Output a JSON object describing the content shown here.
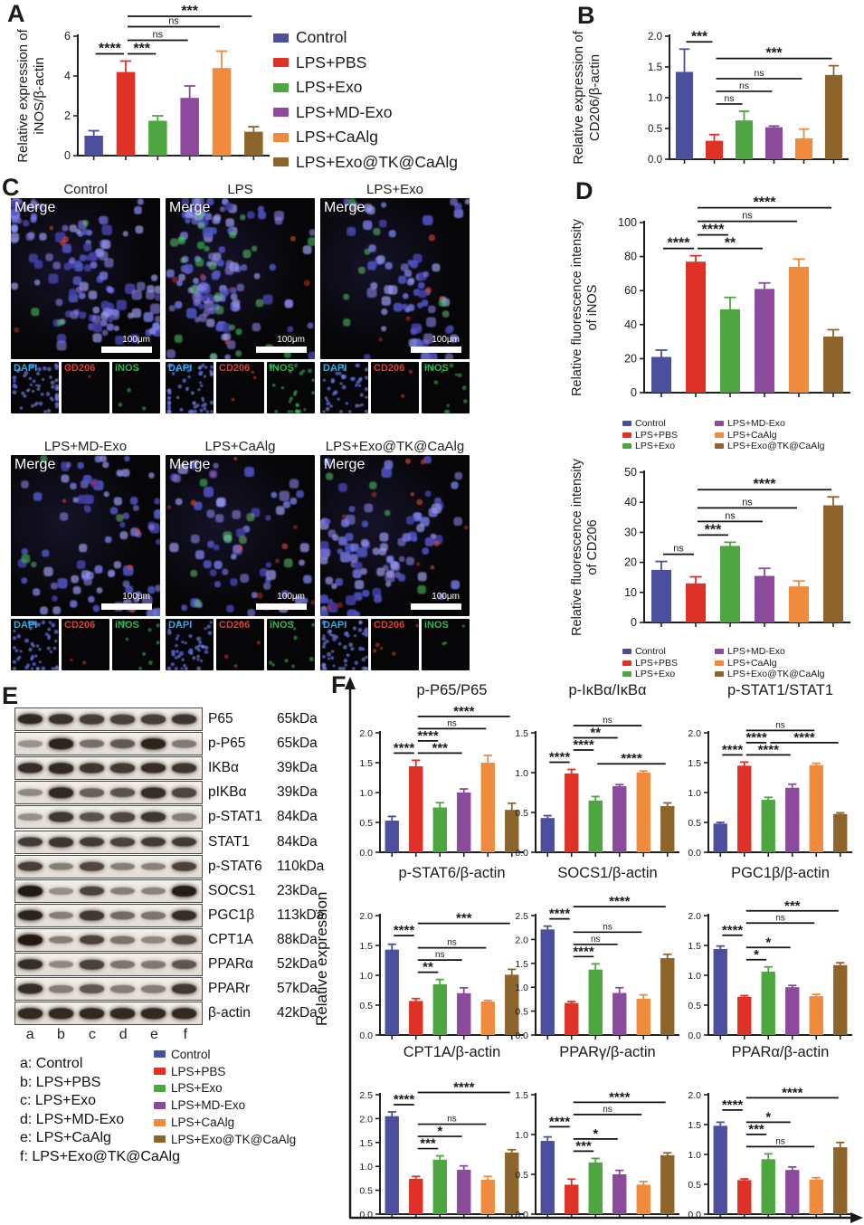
{
  "panels": {
    "a": "A",
    "b": "B",
    "c": "C",
    "d": "D",
    "e": "E",
    "f": "F"
  },
  "colors": {
    "series": [
      "#4b4f9e",
      "#e03127",
      "#4da63f",
      "#8c4a9c",
      "#f08a3d",
      "#8d652c"
    ],
    "axis": "#1f1f1f",
    "sig": "#111111",
    "dapi_label": "#29aee6",
    "cd206_label": "#e43d2d",
    "inos_label": "#2fb54d"
  },
  "legend_top": [
    "Control",
    "LPS+PBS",
    "LPS+Exo",
    "LPS+MD-Exo",
    "LPS+CaAlg",
    "LPS+Exo@TK@CaAlg"
  ],
  "panel_c": {
    "merge_label": "Merge",
    "scale_label": "100μm",
    "channels": [
      "DAPI",
      "CD206",
      "iNOS"
    ],
    "groups": [
      {
        "title": "Control",
        "merge": {
          "blue": 130,
          "green": 3,
          "red": 4
        },
        "mini": {
          "dapi": 60,
          "cd206": 2,
          "inos": 4
        }
      },
      {
        "title": "LPS",
        "merge": {
          "blue": 115,
          "green": 26,
          "red": 6
        },
        "mini": {
          "dapi": 62,
          "cd206": 3,
          "inos": 28
        }
      },
      {
        "title": "LPS+Exo",
        "merge": {
          "blue": 70,
          "green": 8,
          "red": 5
        },
        "mini": {
          "dapi": 45,
          "cd206": 2,
          "inos": 12
        }
      },
      {
        "title": "LPS+MD-Exo",
        "merge": {
          "blue": 88,
          "green": 4,
          "red": 5
        },
        "mini": {
          "dapi": 50,
          "cd206": 2,
          "inos": 9
        }
      },
      {
        "title": "LPS+CaAlg",
        "merge": {
          "blue": 62,
          "green": 8,
          "red": 10
        },
        "mini": {
          "dapi": 44,
          "cd206": 4,
          "inos": 9
        }
      },
      {
        "title": "LPS+Exo@TK@CaAlg",
        "merge": {
          "blue": 92,
          "green": 4,
          "red": 12
        },
        "mini": {
          "dapi": 55,
          "cd206": 5,
          "inos": 3
        }
      }
    ]
  },
  "panel_d": {
    "legend_cols": [
      [
        "Control",
        "LPS+PBS",
        "LPS+Exo"
      ],
      [
        "LPS+MD-Exo",
        "LPS+CaAlg",
        "LPS+Exo@TK@CaAlg"
      ]
    ]
  },
  "panel_e": {
    "lanes": [
      "a",
      "b",
      "c",
      "d",
      "e",
      "f"
    ],
    "blots": [
      {
        "name": "P65",
        "kda": "65kDa",
        "bands": [
          0.92,
          0.88,
          0.82,
          0.8,
          0.82,
          0.86
        ]
      },
      {
        "name": "p-P65",
        "kda": "65kDa",
        "bands": [
          0.4,
          0.95,
          0.58,
          0.68,
          0.95,
          0.52
        ]
      },
      {
        "name": "IKBα",
        "kda": "39kDa",
        "bands": [
          0.9,
          0.92,
          0.86,
          0.84,
          0.9,
          0.86
        ]
      },
      {
        "name": "pIKBα",
        "kda": "39kDa",
        "bands": [
          0.45,
          0.92,
          0.65,
          0.72,
          0.9,
          0.78
        ]
      },
      {
        "name": "p-STAT1",
        "kda": "84kDa",
        "bands": [
          0.42,
          0.85,
          0.72,
          0.78,
          0.86,
          0.5
        ]
      },
      {
        "name": "STAT1",
        "kda": "84kDa",
        "bands": [
          0.84,
          0.86,
          0.84,
          0.8,
          0.84,
          0.84
        ]
      },
      {
        "name": "p-STAT6",
        "kda": "110kDa",
        "bands": [
          0.82,
          0.5,
          0.78,
          0.5,
          0.48,
          0.8
        ]
      },
      {
        "name": "SOCS1",
        "kda": "23kDa",
        "bands": [
          1.0,
          0.42,
          0.8,
          0.5,
          0.48,
          0.98
        ]
      },
      {
        "name": "PGC1β",
        "kda": "113kDa",
        "bands": [
          0.95,
          0.5,
          0.85,
          0.6,
          0.55,
          0.9
        ]
      },
      {
        "name": "CPT1A",
        "kda": "88kDa",
        "bands": [
          1.0,
          0.5,
          0.8,
          0.55,
          0.45,
          0.75
        ]
      },
      {
        "name": "PPARα",
        "kda": "52kDa",
        "bands": [
          0.9,
          0.45,
          0.8,
          0.55,
          0.52,
          0.7
        ]
      },
      {
        "name": "PPARr",
        "kda": "57kDa",
        "bands": [
          0.9,
          0.5,
          0.7,
          0.5,
          0.5,
          0.85
        ]
      },
      {
        "name": "β-actin",
        "kda": "42kDa",
        "bands": [
          0.92,
          0.92,
          0.92,
          0.92,
          0.92,
          0.92
        ]
      }
    ],
    "lane_key": [
      "a: Control",
      "b: LPS+PBS",
      "c: LPS+Exo",
      "d: LPS+MD-Exo",
      "e: LPS+CaAlg",
      "f: LPS+Exo@TK@CaAlg"
    ],
    "legend": [
      "Control",
      "LPS+PBS",
      "LPS+Exo",
      "LPS+MD-Exo",
      "LPS+CaAlg",
      "LPS+Exo@TK@CaAlg"
    ]
  },
  "panel_f": {
    "ylabel": "Relative expression"
  },
  "chart_data": {
    "categories": [
      "Control",
      "LPS+PBS",
      "LPS+Exo",
      "LPS+MD-Exo",
      "LPS+CaAlg",
      "LPS+Exo@TK@CaAlg"
    ],
    "charts": [
      {
        "id": "A",
        "type": "bar",
        "title": "",
        "ylabel_lines": [
          "Relative expression of",
          "iNOS/β-actin"
        ],
        "ymax": 6,
        "yticks": [
          "0",
          "2",
          "4",
          "6"
        ],
        "values": [
          1.0,
          4.2,
          1.75,
          2.9,
          4.4,
          1.2
        ],
        "errors": [
          0.25,
          0.55,
          0.25,
          0.6,
          0.85,
          0.25
        ],
        "sig": [
          {
            "a": 0,
            "b": 1,
            "label": "****",
            "row": 0
          },
          {
            "a": 1,
            "b": 2,
            "label": "***",
            "row": 0
          },
          {
            "a": 1,
            "b": 3,
            "label": "ns",
            "row": 1
          },
          {
            "a": 1,
            "b": 4,
            "label": "ns",
            "row": 2
          },
          {
            "a": 1,
            "b": 5,
            "label": "***",
            "row": 3
          }
        ]
      },
      {
        "id": "B",
        "type": "bar",
        "title": "",
        "ylabel_lines": [
          "Relative expression of",
          "CD206/β-actin"
        ],
        "ymax": 2,
        "yticks": [
          "0.0",
          "0.5",
          "1.0",
          "1.5",
          "2.0"
        ],
        "values": [
          1.42,
          0.3,
          0.63,
          0.52,
          0.34,
          1.37
        ],
        "errors": [
          0.37,
          0.1,
          0.15,
          0.02,
          0.15,
          0.15
        ],
        "sig": [
          {
            "a": 1,
            "b": 2,
            "label": "ns",
            "row": 0
          },
          {
            "a": 1,
            "b": 3,
            "label": "ns",
            "row": 1
          },
          {
            "a": 1,
            "b": 4,
            "label": "ns",
            "row": 2
          },
          {
            "a": 1,
            "b": 5,
            "label": "***",
            "row": 3
          },
          {
            "a": 0,
            "b": 1,
            "label": "***",
            "row": 4
          }
        ]
      },
      {
        "id": "D1",
        "type": "bar",
        "title": "",
        "ylabel_lines": [
          "Relative fluorescence intensity",
          "of iNOS"
        ],
        "ymax": 100,
        "yticks": [
          "0",
          "20",
          "40",
          "60",
          "80",
          "100"
        ],
        "values": [
          21,
          77,
          49,
          61,
          74,
          33
        ],
        "errors": [
          4,
          3.5,
          7,
          3.5,
          4.5,
          4
        ],
        "sig": [
          {
            "a": 0,
            "b": 1,
            "label": "****",
            "row": 0
          },
          {
            "a": 1,
            "b": 3,
            "label": "**",
            "row": 0
          },
          {
            "a": 1,
            "b": 2,
            "label": "****",
            "row": 1
          },
          {
            "a": 1,
            "b": 4,
            "label": "ns",
            "row": 2
          },
          {
            "a": 1,
            "b": 5,
            "label": "****",
            "row": 3
          }
        ]
      },
      {
        "id": "D2",
        "type": "bar",
        "title": "",
        "ylabel_lines": [
          "Relative fluorescence intensity",
          "of CD206"
        ],
        "ymax": 50,
        "yticks": [
          "0",
          "10",
          "20",
          "30",
          "40",
          "50"
        ],
        "values": [
          17.5,
          13,
          25.5,
          15.5,
          12,
          39
        ],
        "errors": [
          2.8,
          2.2,
          1.2,
          2.5,
          1.8,
          2.8
        ],
        "sig": [
          {
            "a": 0,
            "b": 1,
            "label": "ns",
            "row": 0
          },
          {
            "a": 1,
            "b": 2,
            "label": "***",
            "row": 1
          },
          {
            "a": 1,
            "b": 3,
            "label": "ns",
            "row": 2
          },
          {
            "a": 1,
            "b": 4,
            "label": "ns",
            "row": 3
          },
          {
            "a": 1,
            "b": 5,
            "label": "****",
            "row": 4
          }
        ]
      },
      {
        "id": "F1",
        "type": "bar",
        "title": "p-P65/P65",
        "ylabel_lines": [],
        "ymax": 2,
        "yticks": [
          "0.0",
          "0.5",
          "1.0",
          "1.5",
          "2.0"
        ],
        "values": [
          0.53,
          1.44,
          0.75,
          1.0,
          1.5,
          0.71
        ],
        "errors": [
          0.07,
          0.1,
          0.08,
          0.06,
          0.12,
          0.11
        ],
        "sig": [
          {
            "a": 0,
            "b": 1,
            "label": "****",
            "row": 0
          },
          {
            "a": 1,
            "b": 3,
            "label": "***",
            "row": 0
          },
          {
            "a": 1,
            "b": 2,
            "label": "****",
            "row": 1
          },
          {
            "a": 1,
            "b": 4,
            "label": "ns",
            "row": 2
          },
          {
            "a": 1,
            "b": 5,
            "label": "****",
            "row": 3
          }
        ]
      },
      {
        "id": "F2",
        "type": "bar",
        "title": "p-IκBα/IκBα",
        "ylabel_lines": [],
        "ymax": 1.5,
        "yticks": [
          "0.0",
          "0.5",
          "1.0",
          "1.5"
        ],
        "values": [
          0.43,
          0.99,
          0.65,
          0.83,
          1.0,
          0.58
        ],
        "errors": [
          0.03,
          0.05,
          0.05,
          0.02,
          0.02,
          0.04
        ],
        "sig": [
          {
            "a": 0,
            "b": 1,
            "label": "****",
            "row": 0
          },
          {
            "a": 2,
            "b": 5,
            "label": "****",
            "row": 0
          },
          {
            "a": 1,
            "b": 2,
            "label": "****",
            "row": 1
          },
          {
            "a": 1,
            "b": 3,
            "label": "**",
            "row": 2
          },
          {
            "a": 1,
            "b": 4,
            "label": "ns",
            "row": 3
          }
        ]
      },
      {
        "id": "F3",
        "type": "bar",
        "title": "p-STAT1/STAT1",
        "ylabel_lines": [],
        "ymax": 2,
        "yticks": [
          "0.0",
          "0.5",
          "1.0",
          "1.5",
          "2.0"
        ],
        "values": [
          0.48,
          1.45,
          0.88,
          1.08,
          1.46,
          0.64
        ],
        "errors": [
          0.02,
          0.06,
          0.04,
          0.06,
          0.03,
          0.02
        ],
        "sig": [
          {
            "a": 0,
            "b": 1,
            "label": "****",
            "row": 0
          },
          {
            "a": 1,
            "b": 3,
            "label": "****",
            "row": 0
          },
          {
            "a": 1,
            "b": 2,
            "label": "****",
            "row": 1
          },
          {
            "a": 2,
            "b": 5,
            "label": "****",
            "row": 1
          },
          {
            "a": 1,
            "b": 4,
            "label": "ns",
            "row": 2
          }
        ]
      },
      {
        "id": "F4",
        "type": "bar",
        "title": "p-STAT6/β-actin",
        "ylabel_lines": [],
        "ymax": 2,
        "yticks": [
          "0.0",
          "0.5",
          "1.0",
          "1.5",
          "2.0"
        ],
        "values": [
          1.43,
          0.57,
          0.85,
          0.7,
          0.56,
          1.01
        ],
        "errors": [
          0.09,
          0.04,
          0.08,
          0.09,
          0.02,
          0.09
        ],
        "sig": [
          {
            "a": 1,
            "b": 2,
            "label": "**",
            "row": 0
          },
          {
            "a": 1,
            "b": 3,
            "label": "ns",
            "row": 1
          },
          {
            "a": 1,
            "b": 4,
            "label": "ns",
            "row": 2
          },
          {
            "a": 0,
            "b": 1,
            "label": "****",
            "row": 3
          },
          {
            "a": 1,
            "b": 5,
            "label": "***",
            "row": 4
          }
        ]
      },
      {
        "id": "F5",
        "type": "bar",
        "title": "SOCS1/β-actin",
        "ylabel_lines": [],
        "ymax": 2.5,
        "yticks": [
          "0.0",
          "0.5",
          "1.0",
          "1.5",
          "2.0",
          "2.5"
        ],
        "values": [
          2.21,
          0.67,
          1.37,
          0.88,
          0.76,
          1.61
        ],
        "errors": [
          0.07,
          0.03,
          0.12,
          0.11,
          0.08,
          0.08
        ],
        "sig": [
          {
            "a": 1,
            "b": 2,
            "label": "****",
            "row": 0
          },
          {
            "a": 1,
            "b": 3,
            "label": "ns",
            "row": 1
          },
          {
            "a": 1,
            "b": 4,
            "label": "ns",
            "row": 2
          },
          {
            "a": 0,
            "b": 1,
            "label": "****",
            "row": 3
          },
          {
            "a": 1,
            "b": 5,
            "label": "****",
            "row": 4
          }
        ]
      },
      {
        "id": "F6",
        "type": "bar",
        "title": "PGC1β/β-actin",
        "ylabel_lines": [],
        "ymax": 2,
        "yticks": [
          "0.0",
          "0.5",
          "1.0",
          "1.5",
          "2.0"
        ],
        "values": [
          1.44,
          0.64,
          1.06,
          0.8,
          0.65,
          1.17
        ],
        "errors": [
          0.05,
          0.02,
          0.08,
          0.03,
          0.03,
          0.04
        ],
        "sig": [
          {
            "a": 1,
            "b": 2,
            "label": "*",
            "row": 0
          },
          {
            "a": 1,
            "b": 3,
            "label": "*",
            "row": 1
          },
          {
            "a": 0,
            "b": 1,
            "label": "****",
            "row": 2
          },
          {
            "a": 1,
            "b": 4,
            "label": "ns",
            "row": 3
          },
          {
            "a": 1,
            "b": 5,
            "label": "***",
            "row": 4
          }
        ]
      },
      {
        "id": "F7",
        "type": "bar",
        "title": "CPT1A/β-actin",
        "ylabel_lines": [],
        "ymax": 2.5,
        "yticks": [
          "0.0",
          "0.5",
          "1.0",
          "1.5",
          "2.0",
          "2.5"
        ],
        "values": [
          2.05,
          0.74,
          1.14,
          0.93,
          0.72,
          1.29
        ],
        "errors": [
          0.09,
          0.05,
          0.08,
          0.08,
          0.07,
          0.06
        ],
        "sig": [
          {
            "a": 1,
            "b": 2,
            "label": "***",
            "row": 0
          },
          {
            "a": 1,
            "b": 3,
            "label": "*",
            "row": 1
          },
          {
            "a": 1,
            "b": 4,
            "label": "ns",
            "row": 2
          },
          {
            "a": 0,
            "b": 1,
            "label": "****",
            "row": 3
          },
          {
            "a": 1,
            "b": 5,
            "label": "****",
            "row": 4
          }
        ]
      },
      {
        "id": "F8",
        "type": "bar",
        "title": "PPARγ/β-actin",
        "ylabel_lines": [],
        "ymax": 1.5,
        "yticks": [
          "0.0",
          "0.5",
          "1.0",
          "1.5"
        ],
        "values": [
          0.92,
          0.37,
          0.65,
          0.5,
          0.37,
          0.74
        ],
        "errors": [
          0.05,
          0.07,
          0.05,
          0.05,
          0.04,
          0.03
        ],
        "sig": [
          {
            "a": 1,
            "b": 2,
            "label": "***",
            "row": 0
          },
          {
            "a": 1,
            "b": 3,
            "label": "*",
            "row": 1
          },
          {
            "a": 0,
            "b": 1,
            "label": "****",
            "row": 2
          },
          {
            "a": 1,
            "b": 4,
            "label": "ns",
            "row": 3
          },
          {
            "a": 1,
            "b": 5,
            "label": "****",
            "row": 4
          }
        ]
      },
      {
        "id": "F9",
        "type": "bar",
        "title": "PPARα/β-actin",
        "ylabel_lines": [],
        "ymax": 2,
        "yticks": [
          "0.0",
          "0.5",
          "1.0",
          "1.5",
          "2.0"
        ],
        "values": [
          1.48,
          0.57,
          0.92,
          0.74,
          0.58,
          1.12
        ],
        "errors": [
          0.06,
          0.02,
          0.09,
          0.05,
          0.03,
          0.08
        ],
        "sig": [
          {
            "a": 1,
            "b": 4,
            "label": "ns",
            "row": 0
          },
          {
            "a": 1,
            "b": 2,
            "label": "***",
            "row": 1
          },
          {
            "a": 1,
            "b": 3,
            "label": "*",
            "row": 2
          },
          {
            "a": 0,
            "b": 1,
            "label": "****",
            "row": 3
          },
          {
            "a": 1,
            "b": 5,
            "label": "****",
            "row": 4
          }
        ]
      }
    ]
  }
}
